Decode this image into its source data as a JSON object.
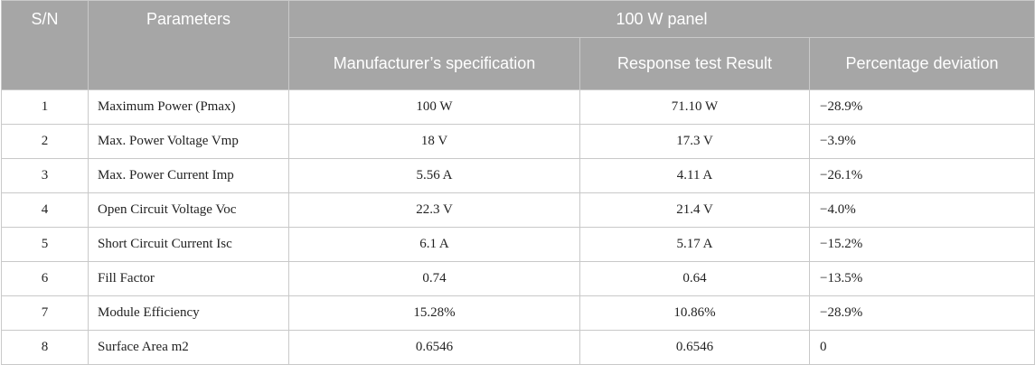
{
  "table": {
    "headers": {
      "sn": "S/N",
      "parameters": "Parameters",
      "group": "100 W panel",
      "manufacturer": "Manufacturer’s specification",
      "response": "Response test Result",
      "deviation": "Percentage deviation"
    },
    "rows": [
      {
        "sn": "1",
        "param": "Maximum Power (Pmax)",
        "spec": "100 W",
        "result": "71.10 W",
        "dev": "−28.9%"
      },
      {
        "sn": "2",
        "param": "Max. Power Voltage Vmp",
        "spec": "18 V",
        "result": "17.3 V",
        "dev": "−3.9%"
      },
      {
        "sn": "3",
        "param": "Max. Power Current Imp",
        "spec": "5.56 A",
        "result": "4.11 A",
        "dev": "−26.1%"
      },
      {
        "sn": "4",
        "param": "Open Circuit Voltage Voc",
        "spec": "22.3 V",
        "result": "21.4 V",
        "dev": "−4.0%"
      },
      {
        "sn": "5",
        "param": "Short Circuit Current Isc",
        "spec": "6.1 A",
        "result": "5.17 A",
        "dev": "−15.2%"
      },
      {
        "sn": "6",
        "param": "Fill Factor",
        "spec": "0.74",
        "result": "0.64",
        "dev": "−13.5%"
      },
      {
        "sn": "7",
        "param": "Module Efficiency",
        "spec": "15.28%",
        "result": "10.86%",
        "dev": "−28.9%"
      },
      {
        "sn": "8",
        "param": "Surface Area m2",
        "spec": "0.6546",
        "result": "0.6546",
        "dev": "0"
      }
    ]
  }
}
